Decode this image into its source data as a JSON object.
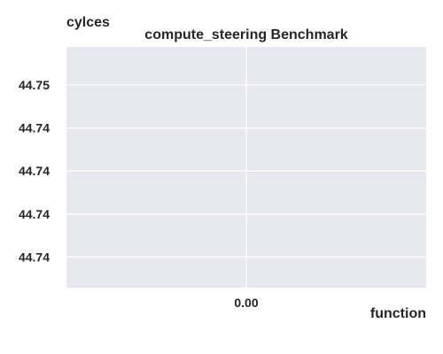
{
  "chart_data": {
    "type": "scatter",
    "title": "compute_steering Benchmark",
    "xlabel": "function",
    "ylabel": "cylces",
    "x_ticks": [
      "0.00"
    ],
    "y_ticks": [
      "44.75",
      "44.74",
      "44.74",
      "44.74",
      "44.74"
    ],
    "xlim": [
      -0.05,
      0.05
    ],
    "ylim": [
      44.737,
      44.7523
    ],
    "series": [],
    "grid": true,
    "legend": "none",
    "colors": {
      "plot_background": "#e8e8f0",
      "grid": "#ffffff",
      "text": "#262626"
    }
  }
}
